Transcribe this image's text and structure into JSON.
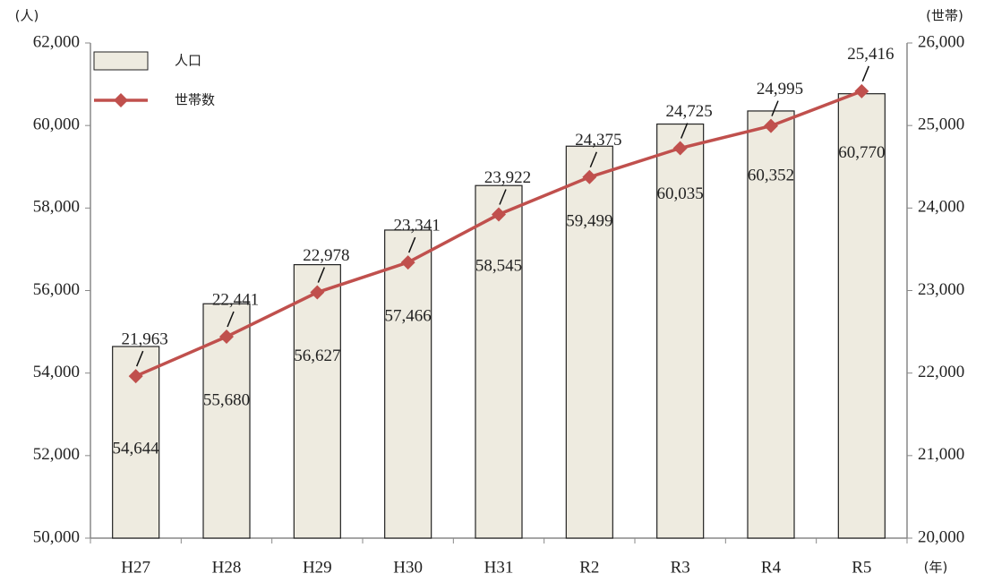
{
  "chart_data": {
    "type": "bar",
    "y_unit": "(人)",
    "y2_unit": "(世帯)",
    "x_unit": "(年)",
    "categories": [
      "H27",
      "H28",
      "H29",
      "H30",
      "H31",
      "R2",
      "R3",
      "R4",
      "R5"
    ],
    "series": [
      {
        "name": "人口",
        "type": "bar",
        "color": "#eeebe0",
        "axis": "y",
        "values": [
          54644,
          55680,
          56627,
          57466,
          58545,
          59499,
          60035,
          60352,
          60770
        ],
        "value_labels": [
          "54,644",
          "55,680",
          "56,627",
          "57,466",
          "58,545",
          "59,499",
          "60,035",
          "60,352",
          "60,770"
        ]
      },
      {
        "name": "世帯数",
        "type": "line",
        "color": "#c0504d",
        "axis": "y2",
        "values": [
          21963,
          22441,
          22978,
          23341,
          23922,
          24375,
          24725,
          24995,
          25416
        ],
        "value_labels": [
          "21,963",
          "22,441",
          "22,978",
          "23,341",
          "23,922",
          "24,375",
          "24,725",
          "24,995",
          "25,416"
        ]
      }
    ],
    "ylim": [
      50000,
      62000
    ],
    "yticks": [
      {
        "value": 50000,
        "label": "50,000"
      },
      {
        "value": 52000,
        "label": "52,000"
      },
      {
        "value": 54000,
        "label": "54,000"
      },
      {
        "value": 56000,
        "label": "56,000"
      },
      {
        "value": 58000,
        "label": "58,000"
      },
      {
        "value": 60000,
        "label": "60,000"
      },
      {
        "value": 62000,
        "label": "62,000"
      }
    ],
    "y2lim": [
      20000,
      26000
    ],
    "y2ticks": [
      {
        "value": 20000,
        "label": "20,000"
      },
      {
        "value": 21000,
        "label": "21,000"
      },
      {
        "value": 22000,
        "label": "22,000"
      },
      {
        "value": 23000,
        "label": "23,000"
      },
      {
        "value": 24000,
        "label": "24,000"
      },
      {
        "value": 25000,
        "label": "25,000"
      },
      {
        "value": 26000,
        "label": "26,000"
      }
    ],
    "legend": "upper left"
  }
}
